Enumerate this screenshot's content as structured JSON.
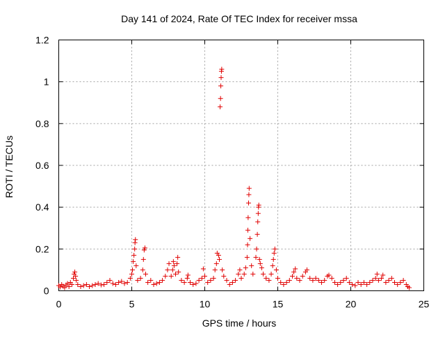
{
  "chart_data": {
    "type": "scatter",
    "title": "Day 141 of 2024, Rate Of TEC Index for receiver mssa",
    "xlabel": "GPS time / hours",
    "ylabel": "ROTI / TECUs",
    "xlim": [
      0,
      25
    ],
    "ylim": [
      0,
      1.2
    ],
    "x_ticks": [
      0,
      5,
      10,
      15,
      20,
      25
    ],
    "x_tick_labels": [
      "0",
      "5",
      "10",
      "15",
      "20",
      "25"
    ],
    "y_ticks": [
      0,
      0.2,
      0.4,
      0.6,
      0.8,
      1.0,
      1.2
    ],
    "y_tick_labels": [
      "0",
      "0.2",
      "0.4",
      "0.6",
      "0.8",
      "1",
      "1.2"
    ],
    "grid": true,
    "marker": "+",
    "color": "#e00000",
    "series": [
      {
        "name": "ROTI",
        "points": [
          [
            0.0,
            0.025
          ],
          [
            0.1,
            0.018
          ],
          [
            0.2,
            0.03
          ],
          [
            0.3,
            0.022
          ],
          [
            0.4,
            0.015
          ],
          [
            0.5,
            0.028
          ],
          [
            0.6,
            0.035
          ],
          [
            0.7,
            0.02
          ],
          [
            0.8,
            0.04
          ],
          [
            0.9,
            0.03
          ],
          [
            1.0,
            0.06
          ],
          [
            1.05,
            0.08
          ],
          [
            1.1,
            0.09
          ],
          [
            1.15,
            0.07
          ],
          [
            1.2,
            0.05
          ],
          [
            1.3,
            0.03
          ],
          [
            1.5,
            0.02
          ],
          [
            1.7,
            0.025
          ],
          [
            1.9,
            0.03
          ],
          [
            2.1,
            0.02
          ],
          [
            2.3,
            0.025
          ],
          [
            2.5,
            0.03
          ],
          [
            2.7,
            0.035
          ],
          [
            2.9,
            0.028
          ],
          [
            3.1,
            0.03
          ],
          [
            3.3,
            0.04
          ],
          [
            3.5,
            0.05
          ],
          [
            3.7,
            0.035
          ],
          [
            3.9,
            0.03
          ],
          [
            4.1,
            0.04
          ],
          [
            4.3,
            0.045
          ],
          [
            4.5,
            0.035
          ],
          [
            4.7,
            0.04
          ],
          [
            4.9,
            0.06
          ],
          [
            5.0,
            0.08
          ],
          [
            5.05,
            0.1
          ],
          [
            5.1,
            0.14
          ],
          [
            5.15,
            0.17
          ],
          [
            5.2,
            0.2
          ],
          [
            5.22,
            0.23
          ],
          [
            5.25,
            0.245
          ],
          [
            5.3,
            0.12
          ],
          [
            5.4,
            0.05
          ],
          [
            5.6,
            0.06
          ],
          [
            5.75,
            0.1
          ],
          [
            5.8,
            0.15
          ],
          [
            5.85,
            0.195
          ],
          [
            5.9,
            0.205
          ],
          [
            5.95,
            0.08
          ],
          [
            6.1,
            0.04
          ],
          [
            6.3,
            0.05
          ],
          [
            6.5,
            0.03
          ],
          [
            6.7,
            0.035
          ],
          [
            6.9,
            0.04
          ],
          [
            7.1,
            0.05
          ],
          [
            7.3,
            0.07
          ],
          [
            7.45,
            0.1
          ],
          [
            7.55,
            0.13
          ],
          [
            7.7,
            0.07
          ],
          [
            7.8,
            0.1
          ],
          [
            7.85,
            0.14
          ],
          [
            7.9,
            0.12
          ],
          [
            8.0,
            0.08
          ],
          [
            8.1,
            0.13
          ],
          [
            8.15,
            0.16
          ],
          [
            8.2,
            0.09
          ],
          [
            8.4,
            0.05
          ],
          [
            8.6,
            0.04
          ],
          [
            8.8,
            0.06
          ],
          [
            8.85,
            0.075
          ],
          [
            9.0,
            0.04
          ],
          [
            9.2,
            0.03
          ],
          [
            9.4,
            0.035
          ],
          [
            9.6,
            0.05
          ],
          [
            9.8,
            0.06
          ],
          [
            9.9,
            0.105
          ],
          [
            10.0,
            0.07
          ],
          [
            10.2,
            0.04
          ],
          [
            10.4,
            0.05
          ],
          [
            10.6,
            0.06
          ],
          [
            10.7,
            0.1
          ],
          [
            10.8,
            0.13
          ],
          [
            10.85,
            0.18
          ],
          [
            10.95,
            0.17
          ],
          [
            11.0,
            0.15
          ],
          [
            11.05,
            0.88
          ],
          [
            11.08,
            0.92
          ],
          [
            11.1,
            0.98
          ],
          [
            11.12,
            1.02
          ],
          [
            11.14,
            1.05
          ],
          [
            11.16,
            1.06
          ],
          [
            11.2,
            0.1
          ],
          [
            11.3,
            0.07
          ],
          [
            11.5,
            0.05
          ],
          [
            11.7,
            0.03
          ],
          [
            11.9,
            0.04
          ],
          [
            12.1,
            0.05
          ],
          [
            12.3,
            0.08
          ],
          [
            12.4,
            0.1
          ],
          [
            12.5,
            0.06
          ],
          [
            12.7,
            0.08
          ],
          [
            12.8,
            0.11
          ],
          [
            12.9,
            0.16
          ],
          [
            12.93,
            0.22
          ],
          [
            12.95,
            0.29
          ],
          [
            12.97,
            0.35
          ],
          [
            13.0,
            0.42
          ],
          [
            13.02,
            0.46
          ],
          [
            13.04,
            0.49
          ],
          [
            13.1,
            0.25
          ],
          [
            13.2,
            0.12
          ],
          [
            13.3,
            0.08
          ],
          [
            13.5,
            0.16
          ],
          [
            13.55,
            0.2
          ],
          [
            13.6,
            0.27
          ],
          [
            13.63,
            0.33
          ],
          [
            13.66,
            0.37
          ],
          [
            13.68,
            0.4
          ],
          [
            13.7,
            0.41
          ],
          [
            13.75,
            0.15
          ],
          [
            13.8,
            0.13
          ],
          [
            13.9,
            0.11
          ],
          [
            14.0,
            0.08
          ],
          [
            14.2,
            0.06
          ],
          [
            14.4,
            0.05
          ],
          [
            14.55,
            0.08
          ],
          [
            14.65,
            0.12
          ],
          [
            14.7,
            0.15
          ],
          [
            14.75,
            0.18
          ],
          [
            14.8,
            0.2
          ],
          [
            14.9,
            0.1
          ],
          [
            15.0,
            0.06
          ],
          [
            15.2,
            0.04
          ],
          [
            15.4,
            0.03
          ],
          [
            15.6,
            0.04
          ],
          [
            15.8,
            0.05
          ],
          [
            16.0,
            0.07
          ],
          [
            16.1,
            0.09
          ],
          [
            16.2,
            0.105
          ],
          [
            16.3,
            0.06
          ],
          [
            16.5,
            0.05
          ],
          [
            16.7,
            0.07
          ],
          [
            16.9,
            0.09
          ],
          [
            17.0,
            0.1
          ],
          [
            17.2,
            0.06
          ],
          [
            17.4,
            0.05
          ],
          [
            17.6,
            0.06
          ],
          [
            17.8,
            0.05
          ],
          [
            18.0,
            0.04
          ],
          [
            18.2,
            0.05
          ],
          [
            18.4,
            0.07
          ],
          [
            18.5,
            0.075
          ],
          [
            18.7,
            0.06
          ],
          [
            18.9,
            0.04
          ],
          [
            19.1,
            0.03
          ],
          [
            19.3,
            0.04
          ],
          [
            19.5,
            0.05
          ],
          [
            19.7,
            0.06
          ],
          [
            19.9,
            0.04
          ],
          [
            20.1,
            0.03
          ],
          [
            20.3,
            0.025
          ],
          [
            20.5,
            0.04
          ],
          [
            20.7,
            0.03
          ],
          [
            20.9,
            0.04
          ],
          [
            21.1,
            0.03
          ],
          [
            21.3,
            0.04
          ],
          [
            21.5,
            0.05
          ],
          [
            21.7,
            0.06
          ],
          [
            21.8,
            0.08
          ],
          [
            21.9,
            0.05
          ],
          [
            22.1,
            0.06
          ],
          [
            22.2,
            0.075
          ],
          [
            22.4,
            0.04
          ],
          [
            22.6,
            0.05
          ],
          [
            22.8,
            0.06
          ],
          [
            23.0,
            0.04
          ],
          [
            23.2,
            0.03
          ],
          [
            23.4,
            0.04
          ],
          [
            23.6,
            0.05
          ],
          [
            23.8,
            0.03
          ],
          [
            23.9,
            0.02
          ],
          [
            24.0,
            0.015
          ]
        ]
      }
    ]
  }
}
